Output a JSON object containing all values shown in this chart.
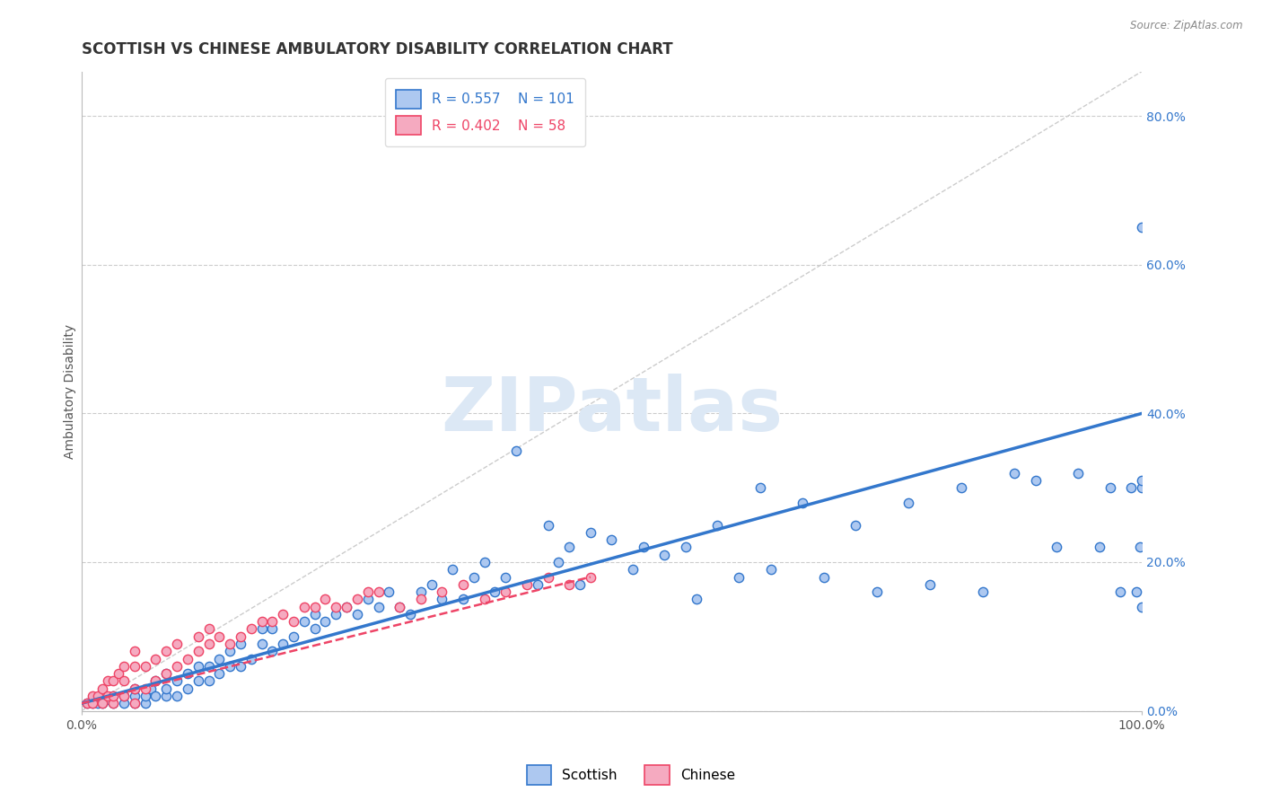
{
  "title": "SCOTTISH VS CHINESE AMBULATORY DISABILITY CORRELATION CHART",
  "source": "Source: ZipAtlas.com",
  "ylabel": "Ambulatory Disability",
  "xlim": [
    0.0,
    1.0
  ],
  "ylim": [
    0.0,
    0.86
  ],
  "y_tick_vals": [
    0.0,
    0.2,
    0.4,
    0.6,
    0.8
  ],
  "y_tick_labels": [
    "0.0%",
    "20.0%",
    "40.0%",
    "60.0%",
    "80.0%"
  ],
  "x_tick_vals": [
    0.0,
    1.0
  ],
  "x_tick_labels": [
    "0.0%",
    "100.0%"
  ],
  "legend_r1": "R = 0.557",
  "legend_n1": "N = 101",
  "legend_r2": "R = 0.402",
  "legend_n2": "N = 58",
  "scatter_color_scottish": "#adc8f0",
  "scatter_color_chinese": "#f5aac0",
  "line_color_scottish": "#3377cc",
  "line_color_chinese": "#ee4466",
  "line_color_diagonal": "#cccccc",
  "background_color": "#ffffff",
  "watermark_text": "ZIPatlas",
  "scottish_x": [
    0.005,
    0.01,
    0.015,
    0.02,
    0.025,
    0.03,
    0.03,
    0.04,
    0.04,
    0.05,
    0.05,
    0.05,
    0.06,
    0.06,
    0.065,
    0.07,
    0.07,
    0.08,
    0.08,
    0.08,
    0.09,
    0.09,
    0.1,
    0.1,
    0.11,
    0.11,
    0.12,
    0.12,
    0.13,
    0.13,
    0.14,
    0.14,
    0.15,
    0.15,
    0.16,
    0.17,
    0.17,
    0.18,
    0.18,
    0.19,
    0.2,
    0.21,
    0.22,
    0.22,
    0.23,
    0.24,
    0.25,
    0.26,
    0.27,
    0.28,
    0.29,
    0.3,
    0.31,
    0.32,
    0.33,
    0.34,
    0.35,
    0.36,
    0.37,
    0.38,
    0.39,
    0.4,
    0.41,
    0.43,
    0.44,
    0.45,
    0.46,
    0.47,
    0.48,
    0.5,
    0.52,
    0.53,
    0.55,
    0.57,
    0.58,
    0.6,
    0.62,
    0.64,
    0.65,
    0.68,
    0.7,
    0.73,
    0.75,
    0.78,
    0.8,
    0.83,
    0.85,
    0.88,
    0.9,
    0.92,
    0.94,
    0.96,
    0.97,
    0.98,
    0.99,
    0.995,
    0.998,
    1.0,
    1.0,
    1.0,
    1.0
  ],
  "scottish_y": [
    0.01,
    0.01,
    0.01,
    0.01,
    0.015,
    0.01,
    0.02,
    0.01,
    0.02,
    0.01,
    0.02,
    0.03,
    0.01,
    0.02,
    0.03,
    0.02,
    0.04,
    0.02,
    0.03,
    0.05,
    0.02,
    0.04,
    0.03,
    0.05,
    0.04,
    0.06,
    0.04,
    0.06,
    0.05,
    0.07,
    0.06,
    0.08,
    0.06,
    0.09,
    0.07,
    0.09,
    0.11,
    0.08,
    0.11,
    0.09,
    0.1,
    0.12,
    0.11,
    0.13,
    0.12,
    0.13,
    0.14,
    0.13,
    0.15,
    0.14,
    0.16,
    0.14,
    0.13,
    0.16,
    0.17,
    0.15,
    0.19,
    0.15,
    0.18,
    0.2,
    0.16,
    0.18,
    0.35,
    0.17,
    0.25,
    0.2,
    0.22,
    0.17,
    0.24,
    0.23,
    0.19,
    0.22,
    0.21,
    0.22,
    0.15,
    0.25,
    0.18,
    0.3,
    0.19,
    0.28,
    0.18,
    0.25,
    0.16,
    0.28,
    0.17,
    0.3,
    0.16,
    0.32,
    0.31,
    0.22,
    0.32,
    0.22,
    0.3,
    0.16,
    0.3,
    0.16,
    0.22,
    0.3,
    0.31,
    0.65,
    0.14
  ],
  "chinese_x": [
    0.005,
    0.01,
    0.01,
    0.015,
    0.02,
    0.02,
    0.025,
    0.025,
    0.03,
    0.03,
    0.03,
    0.035,
    0.04,
    0.04,
    0.04,
    0.05,
    0.05,
    0.05,
    0.05,
    0.06,
    0.06,
    0.07,
    0.07,
    0.08,
    0.08,
    0.09,
    0.09,
    0.1,
    0.11,
    0.11,
    0.12,
    0.12,
    0.13,
    0.14,
    0.15,
    0.16,
    0.17,
    0.18,
    0.19,
    0.2,
    0.21,
    0.22,
    0.23,
    0.24,
    0.25,
    0.26,
    0.27,
    0.28,
    0.3,
    0.32,
    0.34,
    0.36,
    0.38,
    0.4,
    0.42,
    0.44,
    0.46,
    0.48
  ],
  "chinese_y": [
    0.01,
    0.01,
    0.02,
    0.02,
    0.01,
    0.03,
    0.02,
    0.04,
    0.01,
    0.02,
    0.04,
    0.05,
    0.02,
    0.04,
    0.06,
    0.01,
    0.03,
    0.06,
    0.08,
    0.03,
    0.06,
    0.04,
    0.07,
    0.05,
    0.08,
    0.06,
    0.09,
    0.07,
    0.08,
    0.1,
    0.09,
    0.11,
    0.1,
    0.09,
    0.1,
    0.11,
    0.12,
    0.12,
    0.13,
    0.12,
    0.14,
    0.14,
    0.15,
    0.14,
    0.14,
    0.15,
    0.16,
    0.16,
    0.14,
    0.15,
    0.16,
    0.17,
    0.15,
    0.16,
    0.17,
    0.18,
    0.17,
    0.18
  ],
  "scottish_line_x": [
    0.0,
    1.0
  ],
  "scottish_line_y": [
    0.01,
    0.4
  ],
  "chinese_line_x": [
    0.0,
    0.48
  ],
  "chinese_line_y": [
    0.01,
    0.18
  ],
  "diag_line_x": [
    0.0,
    1.0
  ],
  "diag_line_y": [
    0.0,
    0.86
  ],
  "title_fontsize": 12,
  "axis_label_fontsize": 10,
  "tick_fontsize": 10,
  "legend_fontsize": 11,
  "watermark_fontsize": 60,
  "watermark_color": "#dce8f5",
  "scatter_size": 55,
  "scatter_alpha": 0.5,
  "scatter_linewidth": 1.0
}
